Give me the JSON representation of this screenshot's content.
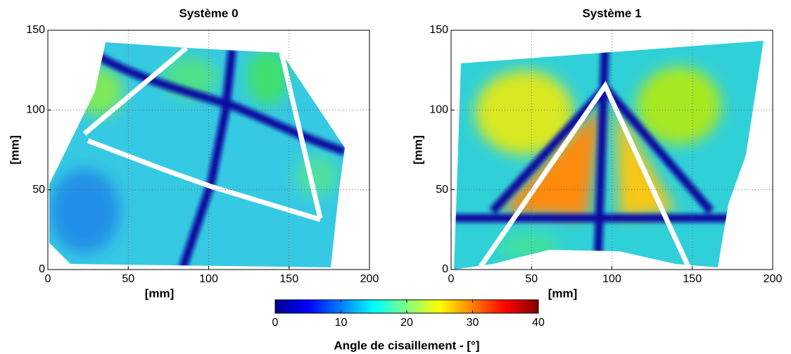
{
  "chart_data": [
    {
      "type": "heatmap",
      "title": "Système 0",
      "xlabel": "[mm]",
      "ylabel": "[mm]",
      "xlim": [
        0,
        200
      ],
      "ylim": [
        0,
        150
      ],
      "xticks": [
        0,
        50,
        100,
        150,
        200
      ],
      "yticks": [
        0,
        50,
        100,
        150
      ],
      "grid": true
    },
    {
      "type": "heatmap",
      "title": "Système 1",
      "xlabel": "[mm]",
      "ylabel": "[mm]",
      "xlim": [
        0,
        200
      ],
      "ylim": [
        0,
        150
      ],
      "xticks": [
        0,
        50,
        100,
        150,
        200
      ],
      "yticks": [
        0,
        50,
        100,
        150
      ],
      "grid": true
    }
  ],
  "colorbar": {
    "label": "Angle de cisaillement - [°]",
    "lim": [
      0,
      40
    ],
    "ticks": [
      0,
      10,
      20,
      30,
      40
    ]
  }
}
